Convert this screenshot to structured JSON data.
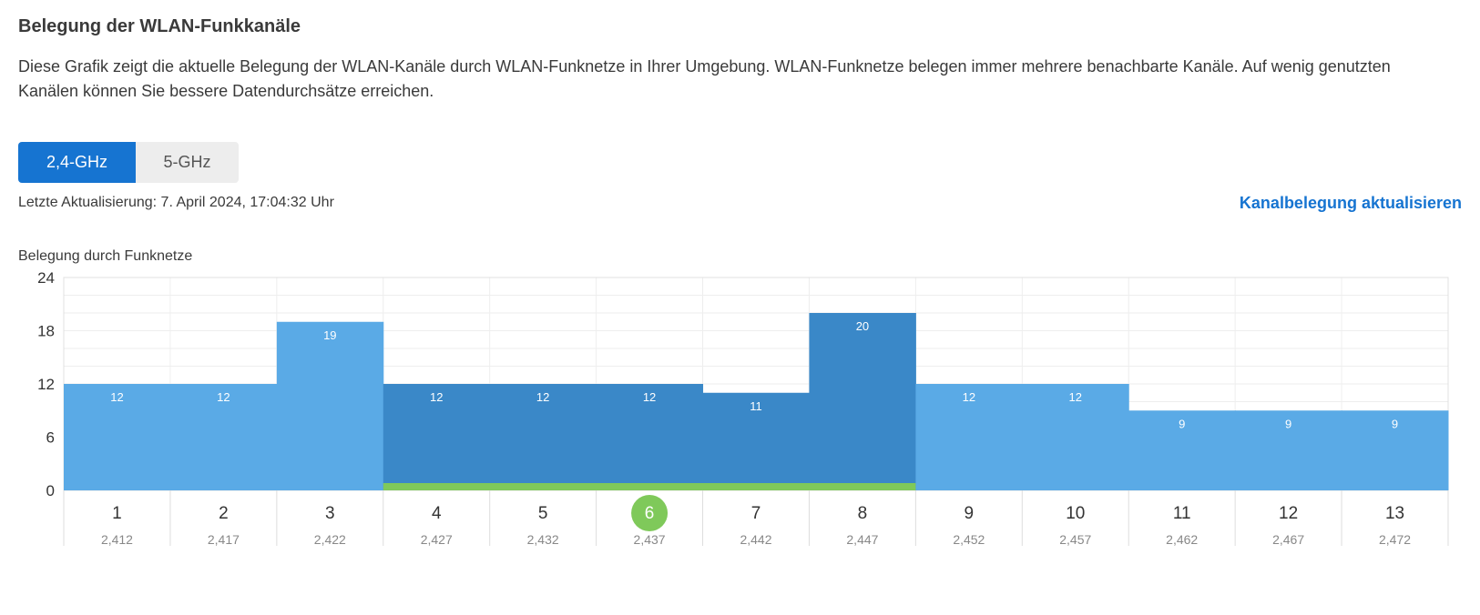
{
  "header": {
    "title": "Belegung der WLAN-Funkkanäle",
    "description": "Diese Grafik zeigt die aktuelle Belegung der WLAN-Kanäle durch WLAN-Funknetze in Ihrer Umgebung. WLAN-Funknetze belegen immer mehrere benachbarte Kanäle. Auf wenig genutzten Kanälen können Sie bessere Datendurchsätze erreichen."
  },
  "tabs": [
    {
      "label": "2,4-GHz",
      "active": true
    },
    {
      "label": "5-GHz",
      "active": false
    }
  ],
  "status": {
    "last_update": "Letzte Aktualisierung: 7. April 2024, 17:04:32 Uhr",
    "refresh_label": "Kanalbelegung aktualisieren"
  },
  "chart_title": "Belegung durch Funknetze",
  "colors": {
    "bar_other": "#5aaae6",
    "bar_own": "#3a88c8",
    "own_band": "#7fc95a",
    "selected_channel": "#7fc95a",
    "accent": "#1674d1"
  },
  "chart_data": {
    "type": "bar",
    "title": "Belegung durch Funknetze",
    "ylim": [
      0,
      24
    ],
    "yticks": [
      0,
      6,
      12,
      18,
      24
    ],
    "categories": [
      "1",
      "2",
      "3",
      "4",
      "5",
      "6",
      "7",
      "8",
      "9",
      "10",
      "11",
      "12",
      "13"
    ],
    "frequencies": [
      "2,412",
      "2,417",
      "2,422",
      "2,427",
      "2,432",
      "2,437",
      "2,442",
      "2,447",
      "2,452",
      "2,457",
      "2,462",
      "2,467",
      "2,472"
    ],
    "values": [
      12,
      12,
      19,
      12,
      12,
      12,
      11,
      20,
      12,
      12,
      9,
      9,
      9
    ],
    "own_network_channels": [
      "4",
      "5",
      "6",
      "7",
      "8"
    ],
    "selected_channel": "6",
    "grid": true
  }
}
